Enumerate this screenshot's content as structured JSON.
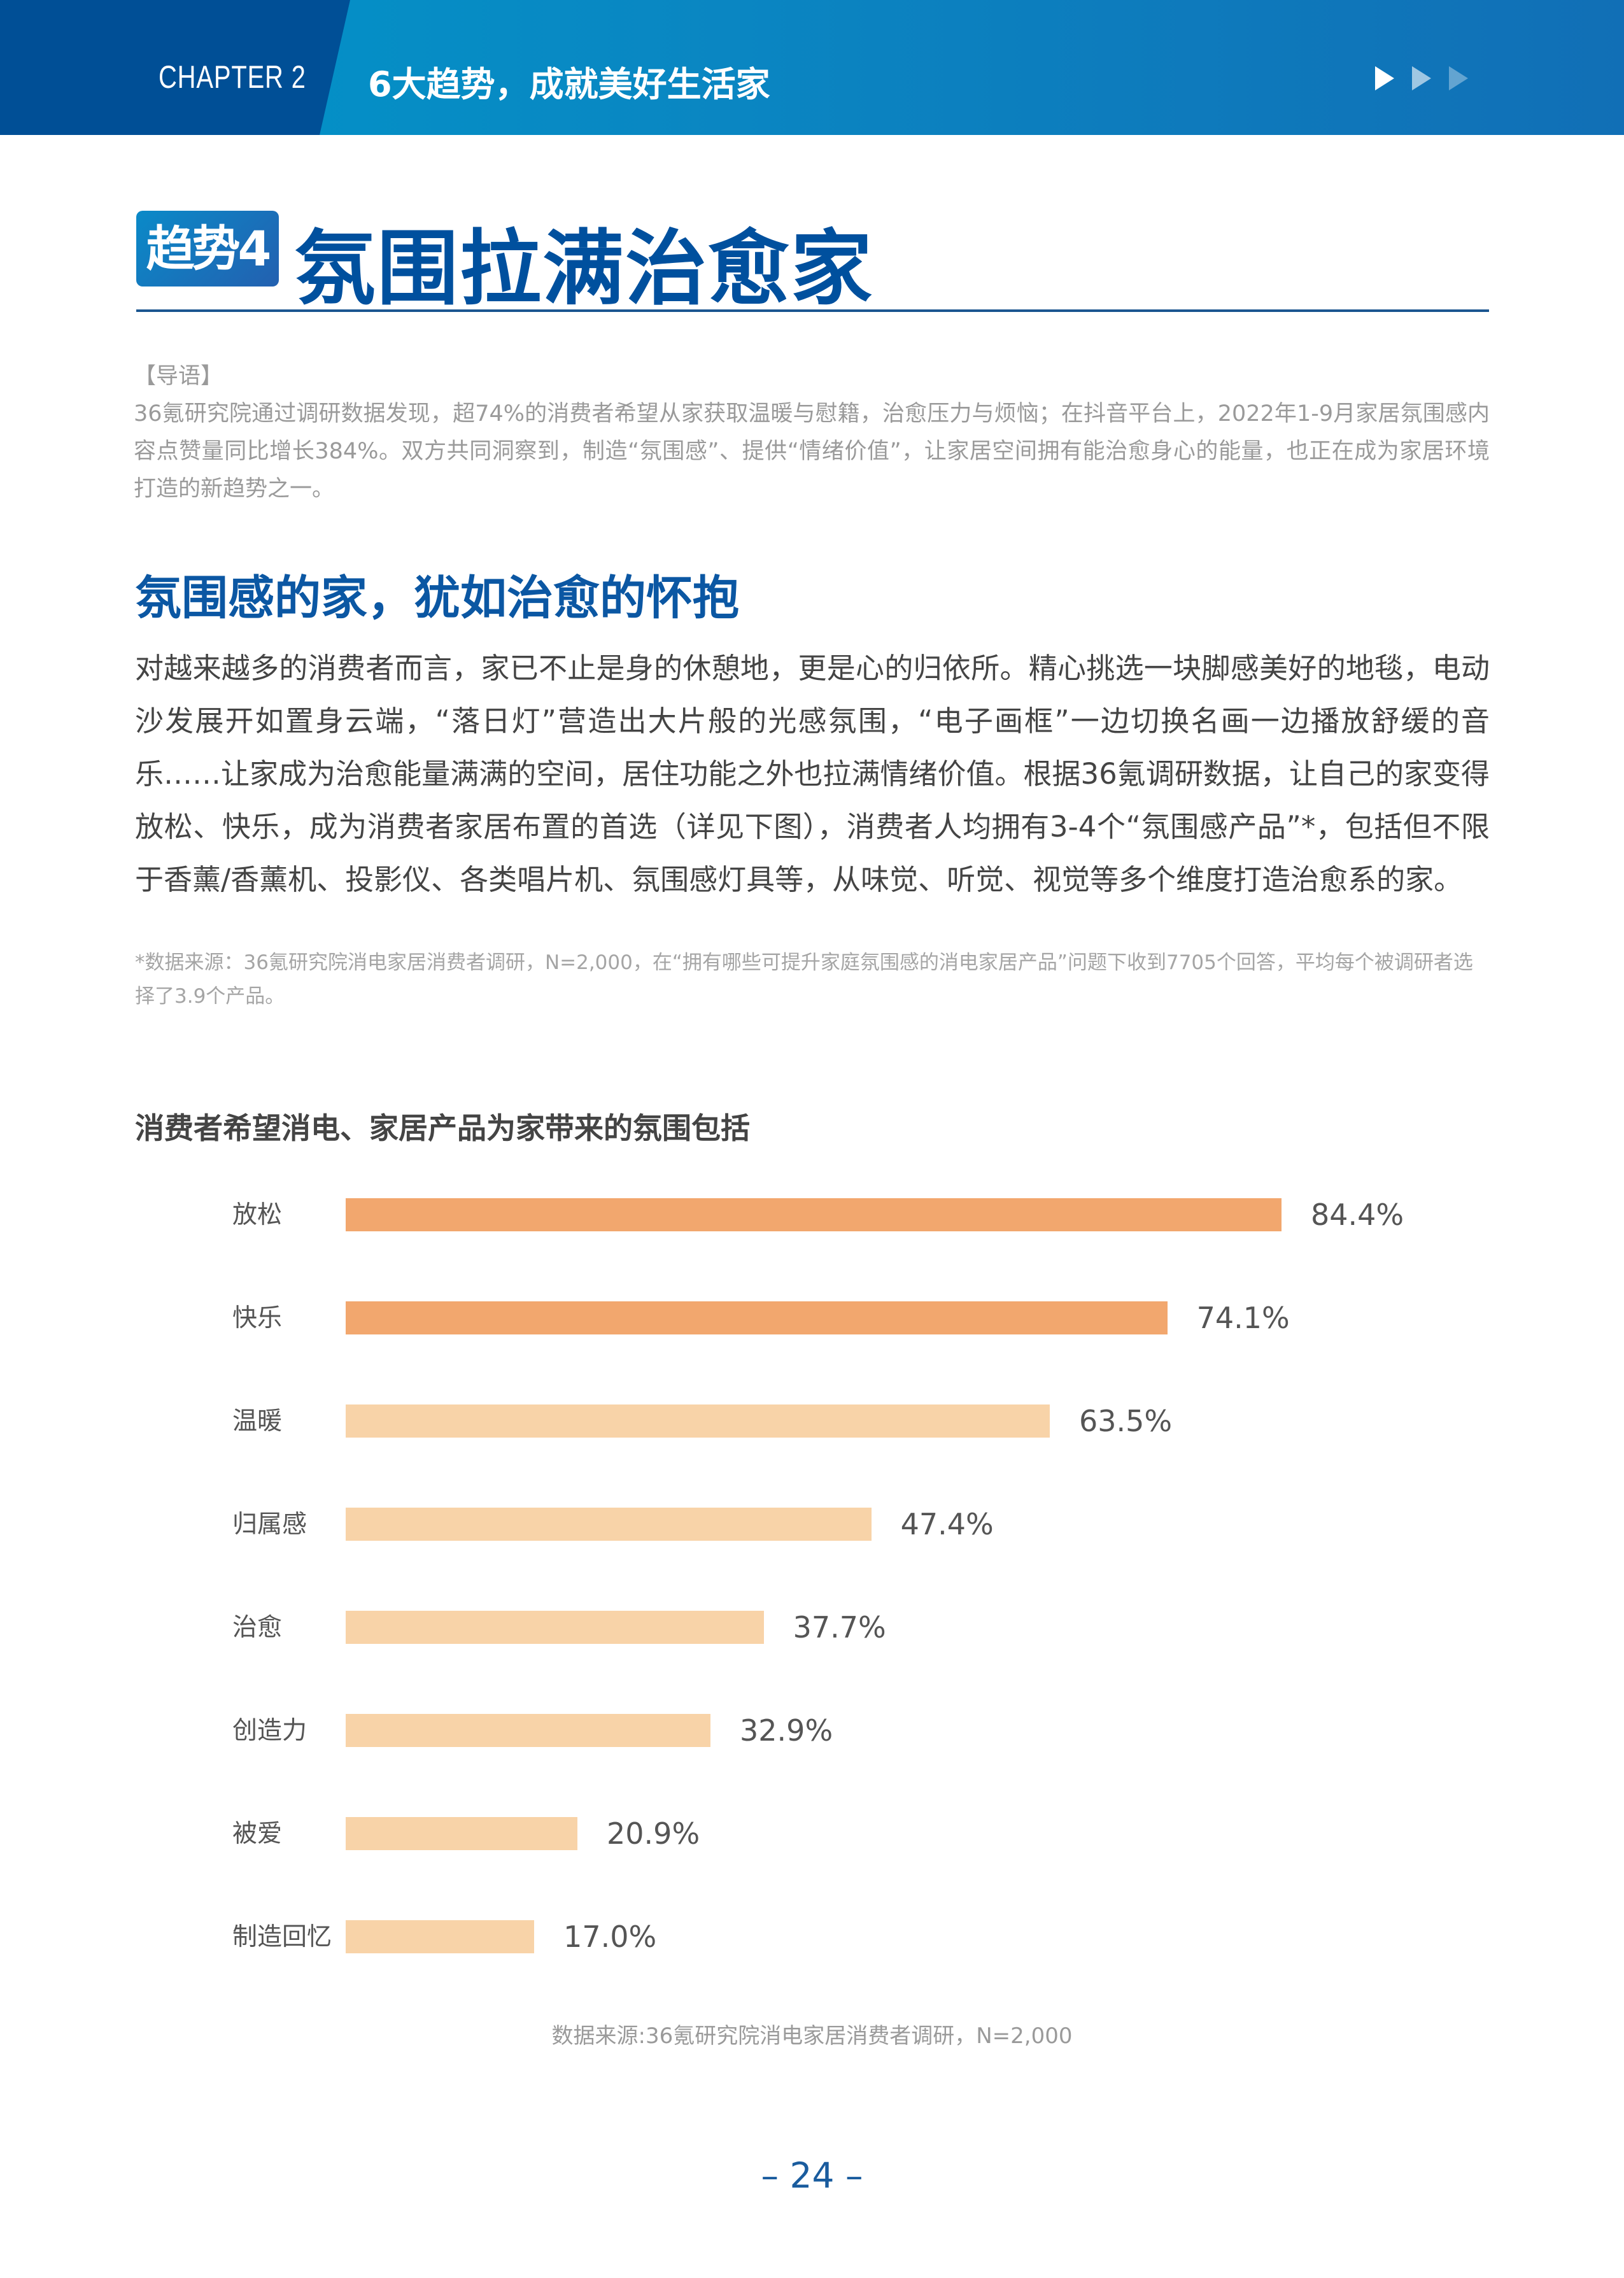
{
  "header": {
    "chapter": "CHAPTER 2",
    "title": "6大趋势，成就美好生活家",
    "arrow_icons": [
      "play-arrow-icon",
      "play-arrow-icon",
      "play-arrow-icon"
    ]
  },
  "section": {
    "badge": "趋势4",
    "title": "氛围拉满治愈家"
  },
  "lead": {
    "label": "【导语】",
    "text": "36氪研究院通过调研数据发现，超74%的消费者希望从家获取温暖与慰籍，治愈压力与烦恼；在抖音平台上，2022年1-9月家居氛围感内容点赞量同比增长384%。双方共同洞察到，制造“氛围感”、提供“情绪价值”，让家居空间拥有能治愈身心的能量，也正在成为家居环境打造的新趋势之一。"
  },
  "subheading": "氛围感的家，犹如治愈的怀抱",
  "paragraph": "对越来越多的消费者而言，家已不止是身的休憩地，更是心的归依所。精心挑选一块脚感美好的地毯，电动沙发展开如置身云端，“落日灯”营造出大片般的光感氛围，“电子画框”一边切换名画一边播放舒缓的音乐……让家成为治愈能量满满的空间，居住功能之外也拉满情绪价值。根据36氪调研数据，让自己的家变得放松、快乐，成为消费者家居布置的首选（详见下图），消费者人均拥有3-4个“氛围感产品”*，包括但不限于香薰/香薰机、投影仪、各类唱片机、氛围感灯具等，从味觉、听觉、视觉等多个维度打造治愈系的家。",
  "footnote": "*数据来源：36氪研究院消电家居消费者调研，N=2,000，在“拥有哪些可提升家庭氛围感的消电家居产品”问题下收到7705个回答，平均每个被调研者选择了3.9个产品。",
  "chart_data": {
    "type": "bar",
    "orientation": "horizontal",
    "title": "消费者希望消电、家居产品为家带来的氛围包括",
    "categories": [
      "放松",
      "快乐",
      "温暖",
      "归属感",
      "治愈",
      "创造力",
      "被爱",
      "制造回忆"
    ],
    "values": [
      84.4,
      74.1,
      63.5,
      47.4,
      37.7,
      32.9,
      20.9,
      17.0
    ],
    "value_labels": [
      "84.4%",
      "74.1%",
      "63.5%",
      "47.4%",
      "37.7%",
      "32.9%",
      "20.9%",
      "17.0%"
    ],
    "unit": "%",
    "colors": {
      "highlight": "#f2a76e",
      "normal": "#f8d3a8"
    },
    "highlighted": [
      true,
      true,
      false,
      false,
      false,
      false,
      false,
      false
    ],
    "grid": false,
    "source": "数据来源:36氪研究院消电家居消费者调研，N=2,000"
  },
  "page_number": "– 24 –"
}
